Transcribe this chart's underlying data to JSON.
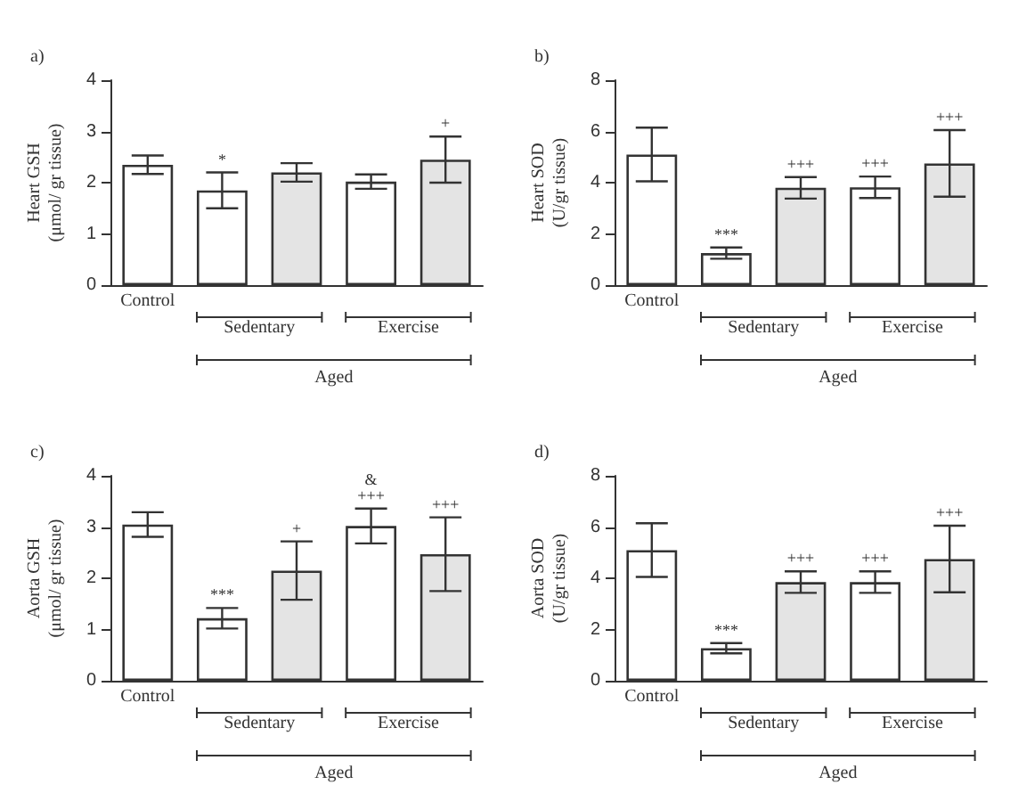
{
  "chart_data": [
    {
      "type": "bar",
      "title": "a)",
      "ylabel": "Heart GSH\n(μmol/ gr tissue)",
      "categories": [
        "Control",
        null,
        null,
        null,
        null
      ],
      "values": [
        2.35,
        1.85,
        2.2,
        2.02,
        2.45
      ],
      "errors": [
        0.18,
        0.35,
        0.18,
        0.14,
        0.45
      ],
      "colors": [
        "#ffffff",
        "#ffffff",
        "#e4e4e4",
        "#ffffff",
        "#e4e4e4"
      ],
      "value_labels": [
        null,
        "*",
        null,
        null,
        "+"
      ],
      "annotations": [
        "Sedentary",
        "Exercise",
        "Aged"
      ],
      "ylim": [
        0,
        4
      ],
      "yticks": [
        0,
        1,
        2,
        3,
        4
      ],
      "grid": false
    },
    {
      "type": "bar",
      "title": "b)",
      "ylabel": "Heart SOD\n(U/gr tissue)",
      "categories": [
        "Control",
        null,
        null,
        null,
        null
      ],
      "values": [
        5.1,
        1.25,
        3.8,
        3.82,
        4.75
      ],
      "errors": [
        1.05,
        0.22,
        0.42,
        0.42,
        1.3
      ],
      "colors": [
        "#ffffff",
        "#ffffff",
        "#e4e4e4",
        "#ffffff",
        "#e4e4e4"
      ],
      "value_labels": [
        null,
        "***",
        "+++",
        "+++",
        "+++"
      ],
      "annotations": [
        "Sedentary",
        "Exercise",
        "Aged"
      ],
      "ylim": [
        0,
        8
      ],
      "yticks": [
        0,
        2,
        4,
        6,
        8
      ],
      "grid": false
    },
    {
      "type": "bar",
      "title": "c)",
      "ylabel": "Aorta GSH\n(μmol/ gr tissue)",
      "categories": [
        "Control",
        null,
        null,
        null,
        null
      ],
      "values": [
        3.05,
        1.22,
        2.15,
        3.02,
        2.47
      ],
      "errors": [
        0.24,
        0.2,
        0.57,
        0.34,
        0.72
      ],
      "colors": [
        "#ffffff",
        "#ffffff",
        "#e4e4e4",
        "#ffffff",
        "#e4e4e4"
      ],
      "value_labels": [
        null,
        "***",
        "+",
        "&\n+++",
        "+++"
      ],
      "annotations": [
        "Sedentary",
        "Exercise",
        "Aged"
      ],
      "ylim": [
        0,
        4
      ],
      "yticks": [
        0,
        1,
        2,
        3,
        4
      ],
      "grid": false
    },
    {
      "type": "bar",
      "title": "d)",
      "ylabel": "Aorta SOD\n(U/gr tissue)",
      "categories": [
        "Control",
        null,
        null,
        null,
        null
      ],
      "values": [
        5.1,
        1.27,
        3.85,
        3.85,
        4.75
      ],
      "errors": [
        1.05,
        0.2,
        0.42,
        0.42,
        1.3
      ],
      "colors": [
        "#ffffff",
        "#ffffff",
        "#e4e4e4",
        "#ffffff",
        "#e4e4e4"
      ],
      "value_labels": [
        null,
        "***",
        "+++",
        "+++",
        "+++"
      ],
      "annotations": [
        "Sedentary",
        "Exercise",
        "Aged"
      ],
      "ylim": [
        0,
        8
      ],
      "yticks": [
        0,
        2,
        4,
        6,
        8
      ],
      "grid": false
    }
  ]
}
